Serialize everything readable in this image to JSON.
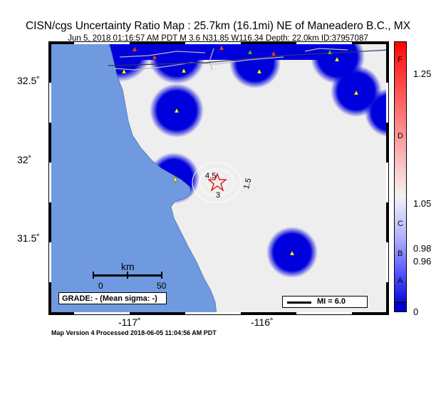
{
  "header": {
    "title": "CISN/cgs Uncertainty Ratio Map : 25.7km (16.1mi) NE of Maneadero B.C., MX",
    "subtitle": "Jun  5, 2018 01:16:57 AM PDT   M 3.6   N31.85 W116.34   Depth: 22.0km   ID:37957087"
  },
  "footer": {
    "text": "Map Version 4 Processed 2018-06-05 11:04:56 AM PDT"
  },
  "map": {
    "lat_ticks": [
      "32.5˚",
      "32˚",
      "31.5˚"
    ],
    "lon_ticks": [
      "-117˚",
      "-116˚"
    ],
    "contour_labels": [
      "4.5",
      "3",
      "1.5"
    ],
    "epicenter": {
      "lat": 31.85,
      "lon": -116.34
    },
    "colors": {
      "ocean": "#6f9ae0",
      "land": "#eeeeee",
      "station_blue": "#0000dd",
      "station_marker": "#ffff33",
      "epicenter": "#dd0000"
    }
  },
  "scale": {
    "title": "km",
    "min_label": "0",
    "max_label": "50"
  },
  "grade": {
    "text": "GRADE: - (Mean sigma: -)"
  },
  "legend": {
    "mi_label": "MI = 6.0"
  },
  "colorbar": {
    "ticks": [
      "1.25",
      "1.05",
      "0.98",
      "0.96",
      "0"
    ],
    "grades": [
      "F",
      "D",
      "C",
      "B",
      "A"
    ],
    "colors": [
      "#ff0000",
      "#f3f3f3",
      "#0000cc"
    ]
  }
}
